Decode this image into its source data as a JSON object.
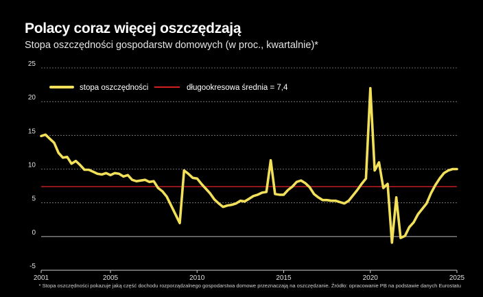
{
  "header": {
    "title": "Polacy coraz więcej oszczędzają",
    "subtitle": "Stopa oszczędności gospodarstw domowych (w proc., kwartalnie)*"
  },
  "footnote": "* Stopa oszczędności pokazuje jaką część dochodu rozporządzalnego gospodarstwa domowe przeznaczają na oszczędzanie. Źródło: opracowanie PB na podstawie danych Eurostatu",
  "colors": {
    "background": "#000000",
    "series": "#f2e05a",
    "average": "#d42020",
    "grid": "#8a8a8a",
    "zero": "#bdbdbd"
  },
  "chart_data": {
    "type": "line",
    "title": "Polacy coraz więcej oszczędzają",
    "subtitle": "Stopa oszczędności gospodarstw domowych (w proc., kwartalnie)*",
    "xlabel": "",
    "ylabel": "",
    "ylim": [
      -5,
      25
    ],
    "xlim": [
      2001,
      2025
    ],
    "yticks": [
      "25",
      "20",
      "15",
      "10",
      "5",
      "0",
      "-5"
    ],
    "yticks_values": [
      25,
      20,
      15,
      10,
      5,
      0,
      -5
    ],
    "xticks": [
      "2001",
      "2005",
      "2010",
      "2015",
      "2020",
      "2025"
    ],
    "xticks_values": [
      2001,
      2005,
      2010,
      2015,
      2020,
      2025
    ],
    "grid": "horizontal dashed",
    "legend_placement": "top-left",
    "series": [
      {
        "name": "stopa oszczędności",
        "x": [
          2001.0,
          2001.25,
          2001.5,
          2001.75,
          2002.0,
          2002.25,
          2002.5,
          2002.75,
          2003.0,
          2003.25,
          2003.5,
          2003.75,
          2004.0,
          2004.25,
          2004.5,
          2004.75,
          2005.0,
          2005.25,
          2005.5,
          2005.75,
          2006.0,
          2006.25,
          2006.5,
          2006.75,
          2007.0,
          2007.25,
          2007.5,
          2007.75,
          2008.0,
          2008.25,
          2008.5,
          2008.75,
          2009.0,
          2009.25,
          2009.5,
          2009.75,
          2010.0,
          2010.25,
          2010.5,
          2010.75,
          2011.0,
          2011.25,
          2011.5,
          2011.75,
          2012.0,
          2012.25,
          2012.5,
          2012.75,
          2013.0,
          2013.25,
          2013.5,
          2013.75,
          2014.0,
          2014.25,
          2014.5,
          2014.75,
          2015.0,
          2015.25,
          2015.5,
          2015.75,
          2016.0,
          2016.25,
          2016.5,
          2016.75,
          2017.0,
          2017.25,
          2017.5,
          2017.75,
          2018.0,
          2018.25,
          2018.5,
          2018.75,
          2019.0,
          2019.25,
          2019.5,
          2019.75,
          2020.0,
          2020.25,
          2020.5,
          2020.75,
          2021.0,
          2021.25,
          2021.5,
          2021.75,
          2022.0,
          2022.25,
          2022.5,
          2022.75,
          2023.0,
          2023.25,
          2023.5,
          2023.75,
          2024.0,
          2024.25,
          2024.5,
          2024.75,
          2025.0
        ],
        "values": [
          14.9,
          15.1,
          14.5,
          13.9,
          12.4,
          11.7,
          11.8,
          10.8,
          11.2,
          10.6,
          9.9,
          9.9,
          9.6,
          9.3,
          9.2,
          9.4,
          9.1,
          9.4,
          9.3,
          8.9,
          9.1,
          8.4,
          8.2,
          8.3,
          8.4,
          8.1,
          8.2,
          7.2,
          6.7,
          5.9,
          4.6,
          3.3,
          2.0,
          9.8,
          9.3,
          8.7,
          8.6,
          7.8,
          7.1,
          6.4,
          5.5,
          4.9,
          4.4,
          4.6,
          4.7,
          4.9,
          5.3,
          5.2,
          5.6,
          6.0,
          6.2,
          6.5,
          6.6,
          11.3,
          6.3,
          6.2,
          6.2,
          6.9,
          7.4,
          8.1,
          8.3,
          7.9,
          7.3,
          6.3,
          5.8,
          5.4,
          5.4,
          5.3,
          5.3,
          5.1,
          4.9,
          5.3,
          6.1,
          6.9,
          7.8,
          8.6,
          22.0,
          9.8,
          11.0,
          7.2,
          7.8,
          -0.9,
          5.8,
          -0.2,
          0.1,
          1.4,
          2.1,
          3.3,
          4.1,
          4.9,
          6.4,
          7.6,
          8.6,
          9.4,
          9.8,
          10.0,
          10.0
        ]
      },
      {
        "name": "długookresowa średnia = 7,4",
        "x": [
          2001,
          2025
        ],
        "values": [
          7.4,
          7.4
        ]
      }
    ]
  }
}
